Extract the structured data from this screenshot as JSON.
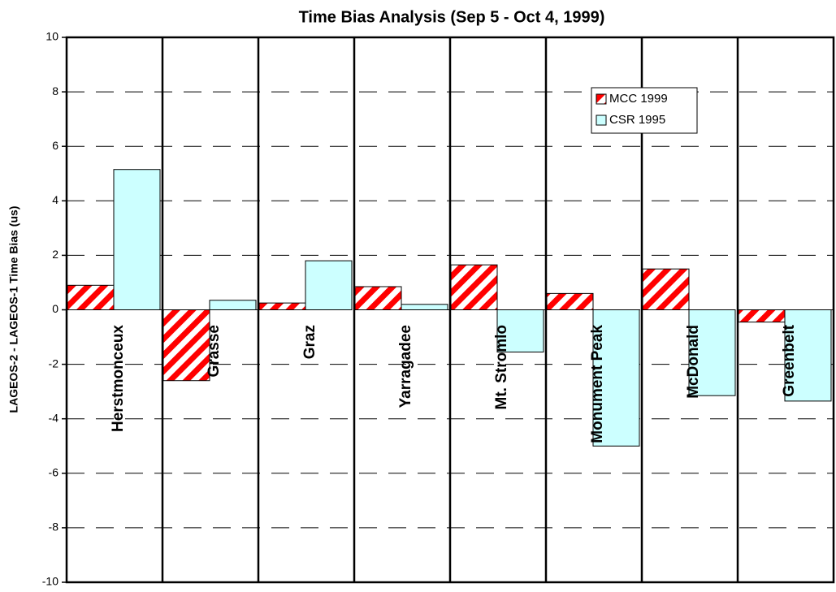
{
  "chart_data": {
    "type": "bar",
    "title": "Time Bias Analysis (Sep 5 - Oct 4, 1999)",
    "y_label": "LAGEOS-2 - LAGEOS-1 Time Bias (us)",
    "categories": [
      "Herstmonceux",
      "Grasse",
      "Graz",
      "Yarragadee",
      "Mt. Stromlo",
      "Monument Peak",
      "McDonald",
      "Greenbelt"
    ],
    "series": [
      {
        "name": "MCC 1999",
        "color": "#ff0000",
        "values": [
          0.9,
          -2.6,
          0.25,
          0.85,
          1.65,
          0.6,
          1.5,
          -0.45
        ]
      },
      {
        "name": "CSR 1995",
        "color": "#ccffff",
        "values": [
          5.15,
          0.35,
          1.8,
          0.2,
          -1.55,
          -5.0,
          -3.15,
          -3.35
        ]
      }
    ],
    "ylim": [
      -10,
      10
    ],
    "yticks": [
      -10,
      -8,
      -6,
      -4,
      -2,
      0,
      2,
      4,
      6,
      8,
      10
    ],
    "grid": true,
    "legend": "upper right"
  }
}
